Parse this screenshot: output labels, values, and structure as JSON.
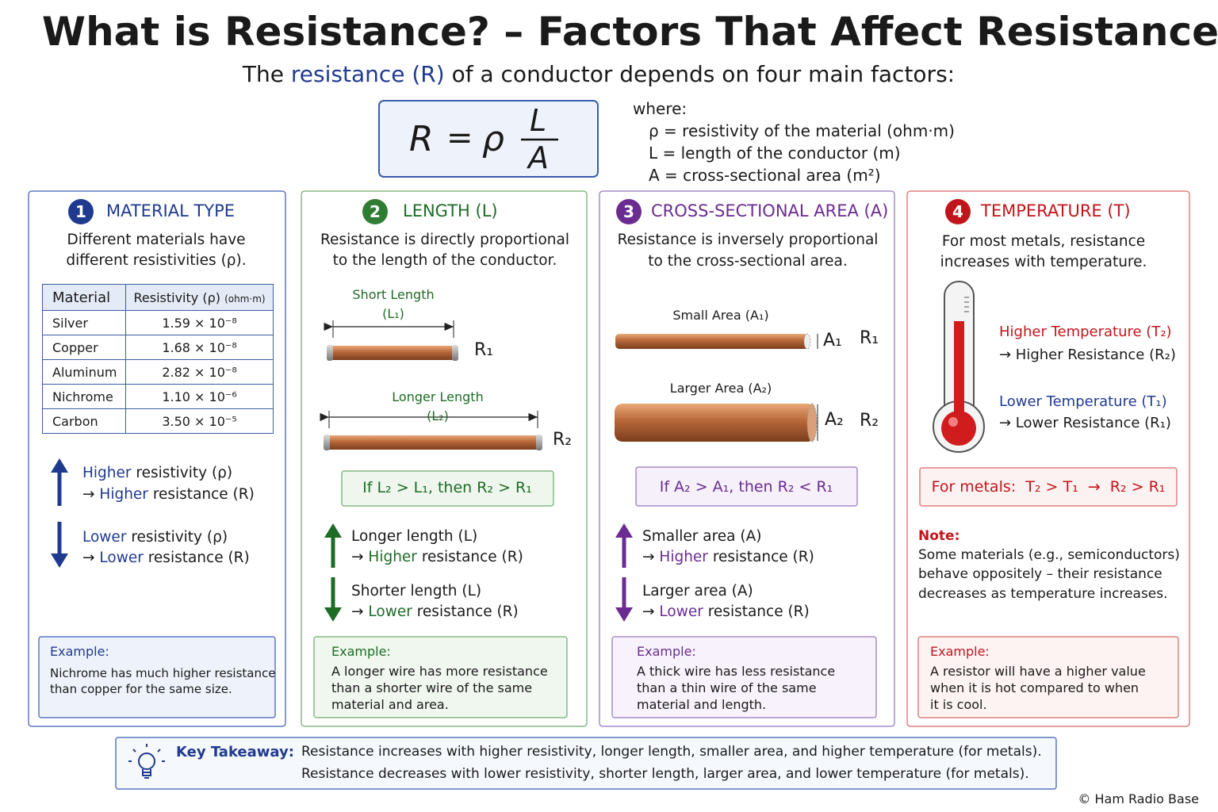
{
  "header": {
    "title": "What is Resistance? – Factors That Affect Resistance",
    "subtitle": {
      "before": "The",
      "highlight": "resistance (R)",
      "after": "of a conductor depends on four main factors:"
    }
  },
  "formula": {
    "lhs": "R",
    "eq": "=",
    "rho": "ρ",
    "numerator": "L",
    "denominator": "A"
  },
  "where": {
    "label": "where:",
    "items": [
      "ρ = resistivity of the material (ohm·m)",
      "L = length of the conductor (m)",
      "A = cross-sectional area (m²)"
    ]
  },
  "panels": [
    {
      "number": "1",
      "heading": "MATERIAL TYPE",
      "description": [
        "Different materials have",
        "different resistivities (ρ)."
      ],
      "table": {
        "header": {
          "material": "Material",
          "resistivity": "Resistivity (ρ)",
          "unit": "(ohm·m)"
        },
        "rows": [
          [
            "Silver",
            "1.59 × 10⁻⁸"
          ],
          [
            "Copper",
            "1.68 × 10⁻⁸"
          ],
          [
            "Aluminum",
            "2.82 × 10⁻⁸"
          ],
          [
            "Nichrome",
            "1.10 × 10⁻⁶"
          ],
          [
            "Carbon",
            "3.50 × 10⁻⁵"
          ]
        ]
      },
      "higher": {
        "line1": {
          "highlight": "Higher",
          "tail": "resistivity (ρ)"
        },
        "line2": {
          "arrow": "→",
          "highlight": "Higher",
          "tail": "resistance (R)"
        }
      },
      "lower": {
        "line1": {
          "highlight": "Lower",
          "tail": "resistivity (ρ)"
        },
        "line2": {
          "arrow": "→",
          "highlight": "Lower",
          "tail": "resistance (R)"
        }
      },
      "example": {
        "label": "Example:",
        "lines": [
          "Nichrome has much higher resistance",
          "than copper for the same size."
        ]
      }
    },
    {
      "number": "2",
      "heading": "LENGTH (L)",
      "description": [
        "Resistance is directly proportional",
        "to the length of the conductor."
      ],
      "short": {
        "label": "Short Length",
        "symbol": "(L₁)",
        "resistance": "R₁"
      },
      "long": {
        "label": "Longer Length",
        "symbol": "(L₂)",
        "resistance": "R₂"
      },
      "condition": "If L₂ > L₁, then R₂ > R₁",
      "higher": {
        "line1": "Longer length (L)",
        "line2": {
          "arrow": "→",
          "highlight": "Higher",
          "tail": "resistance (R)"
        }
      },
      "lower": {
        "line1": "Shorter length (L)",
        "line2": {
          "arrow": "→",
          "highlight": "Lower",
          "tail": "resistance (R)"
        }
      },
      "example": {
        "label": "Example:",
        "lines": [
          "A longer wire has more resistance",
          "than a shorter wire of the same",
          "material and area."
        ]
      }
    },
    {
      "number": "3",
      "heading": "CROSS-SECTIONAL AREA (A)",
      "description": [
        "Resistance is inversely proportional",
        "to the cross-sectional area."
      ],
      "small": {
        "label": "Small Area (A₁)",
        "symbol": "A₁",
        "resistance": "R₁"
      },
      "large": {
        "label": "Larger Area (A₂)",
        "symbol": "A₂",
        "resistance": "R₂"
      },
      "condition": "If A₂ > A₁, then R₂ < R₁",
      "higher": {
        "line1": "Smaller area (A)",
        "line2": {
          "arrow": "→",
          "highlight": "Higher",
          "tail": "resistance (R)"
        }
      },
      "lower": {
        "line1": "Larger area (A)",
        "line2": {
          "arrow": "→",
          "highlight": "Lower",
          "tail": "resistance (R)"
        }
      },
      "example": {
        "label": "Example:",
        "lines": [
          "A thick wire has less resistance",
          "than a thin wire of the same",
          "material and length."
        ]
      }
    },
    {
      "number": "4",
      "heading": "TEMPERATURE (T)",
      "description": [
        "For most metals, resistance",
        "increases with temperature."
      ],
      "hot": {
        "label": "Higher Temperature (T₂)",
        "result": "→ Higher Resistance (R₂)"
      },
      "cold": {
        "label": "Lower Temperature (T₁)",
        "result": "→ Lower Resistance (R₁)"
      },
      "condition": {
        "label": "For metals:",
        "text": "T₂ > T₁  →  R₂ > R₁"
      },
      "note": {
        "label": "Note:",
        "lines": [
          "Some materials (e.g., semiconductors)",
          "behave oppositely – their resistance",
          "decreases as temperature increases."
        ]
      },
      "example": {
        "label": "Example:",
        "lines": [
          "A resistor will have a higher value",
          "when it is hot compared to when",
          "it is cool."
        ]
      }
    }
  ],
  "takeaway": {
    "label": "Key Takeaway:",
    "lines": [
      "Resistance increases with higher resistivity, longer length, smaller area, and higher temperature (for metals).",
      "Resistance decreases with lower resistivity, shorter length, larger area, and lower temperature (for metals)."
    ]
  },
  "credit": "© Ham Radio Base"
}
